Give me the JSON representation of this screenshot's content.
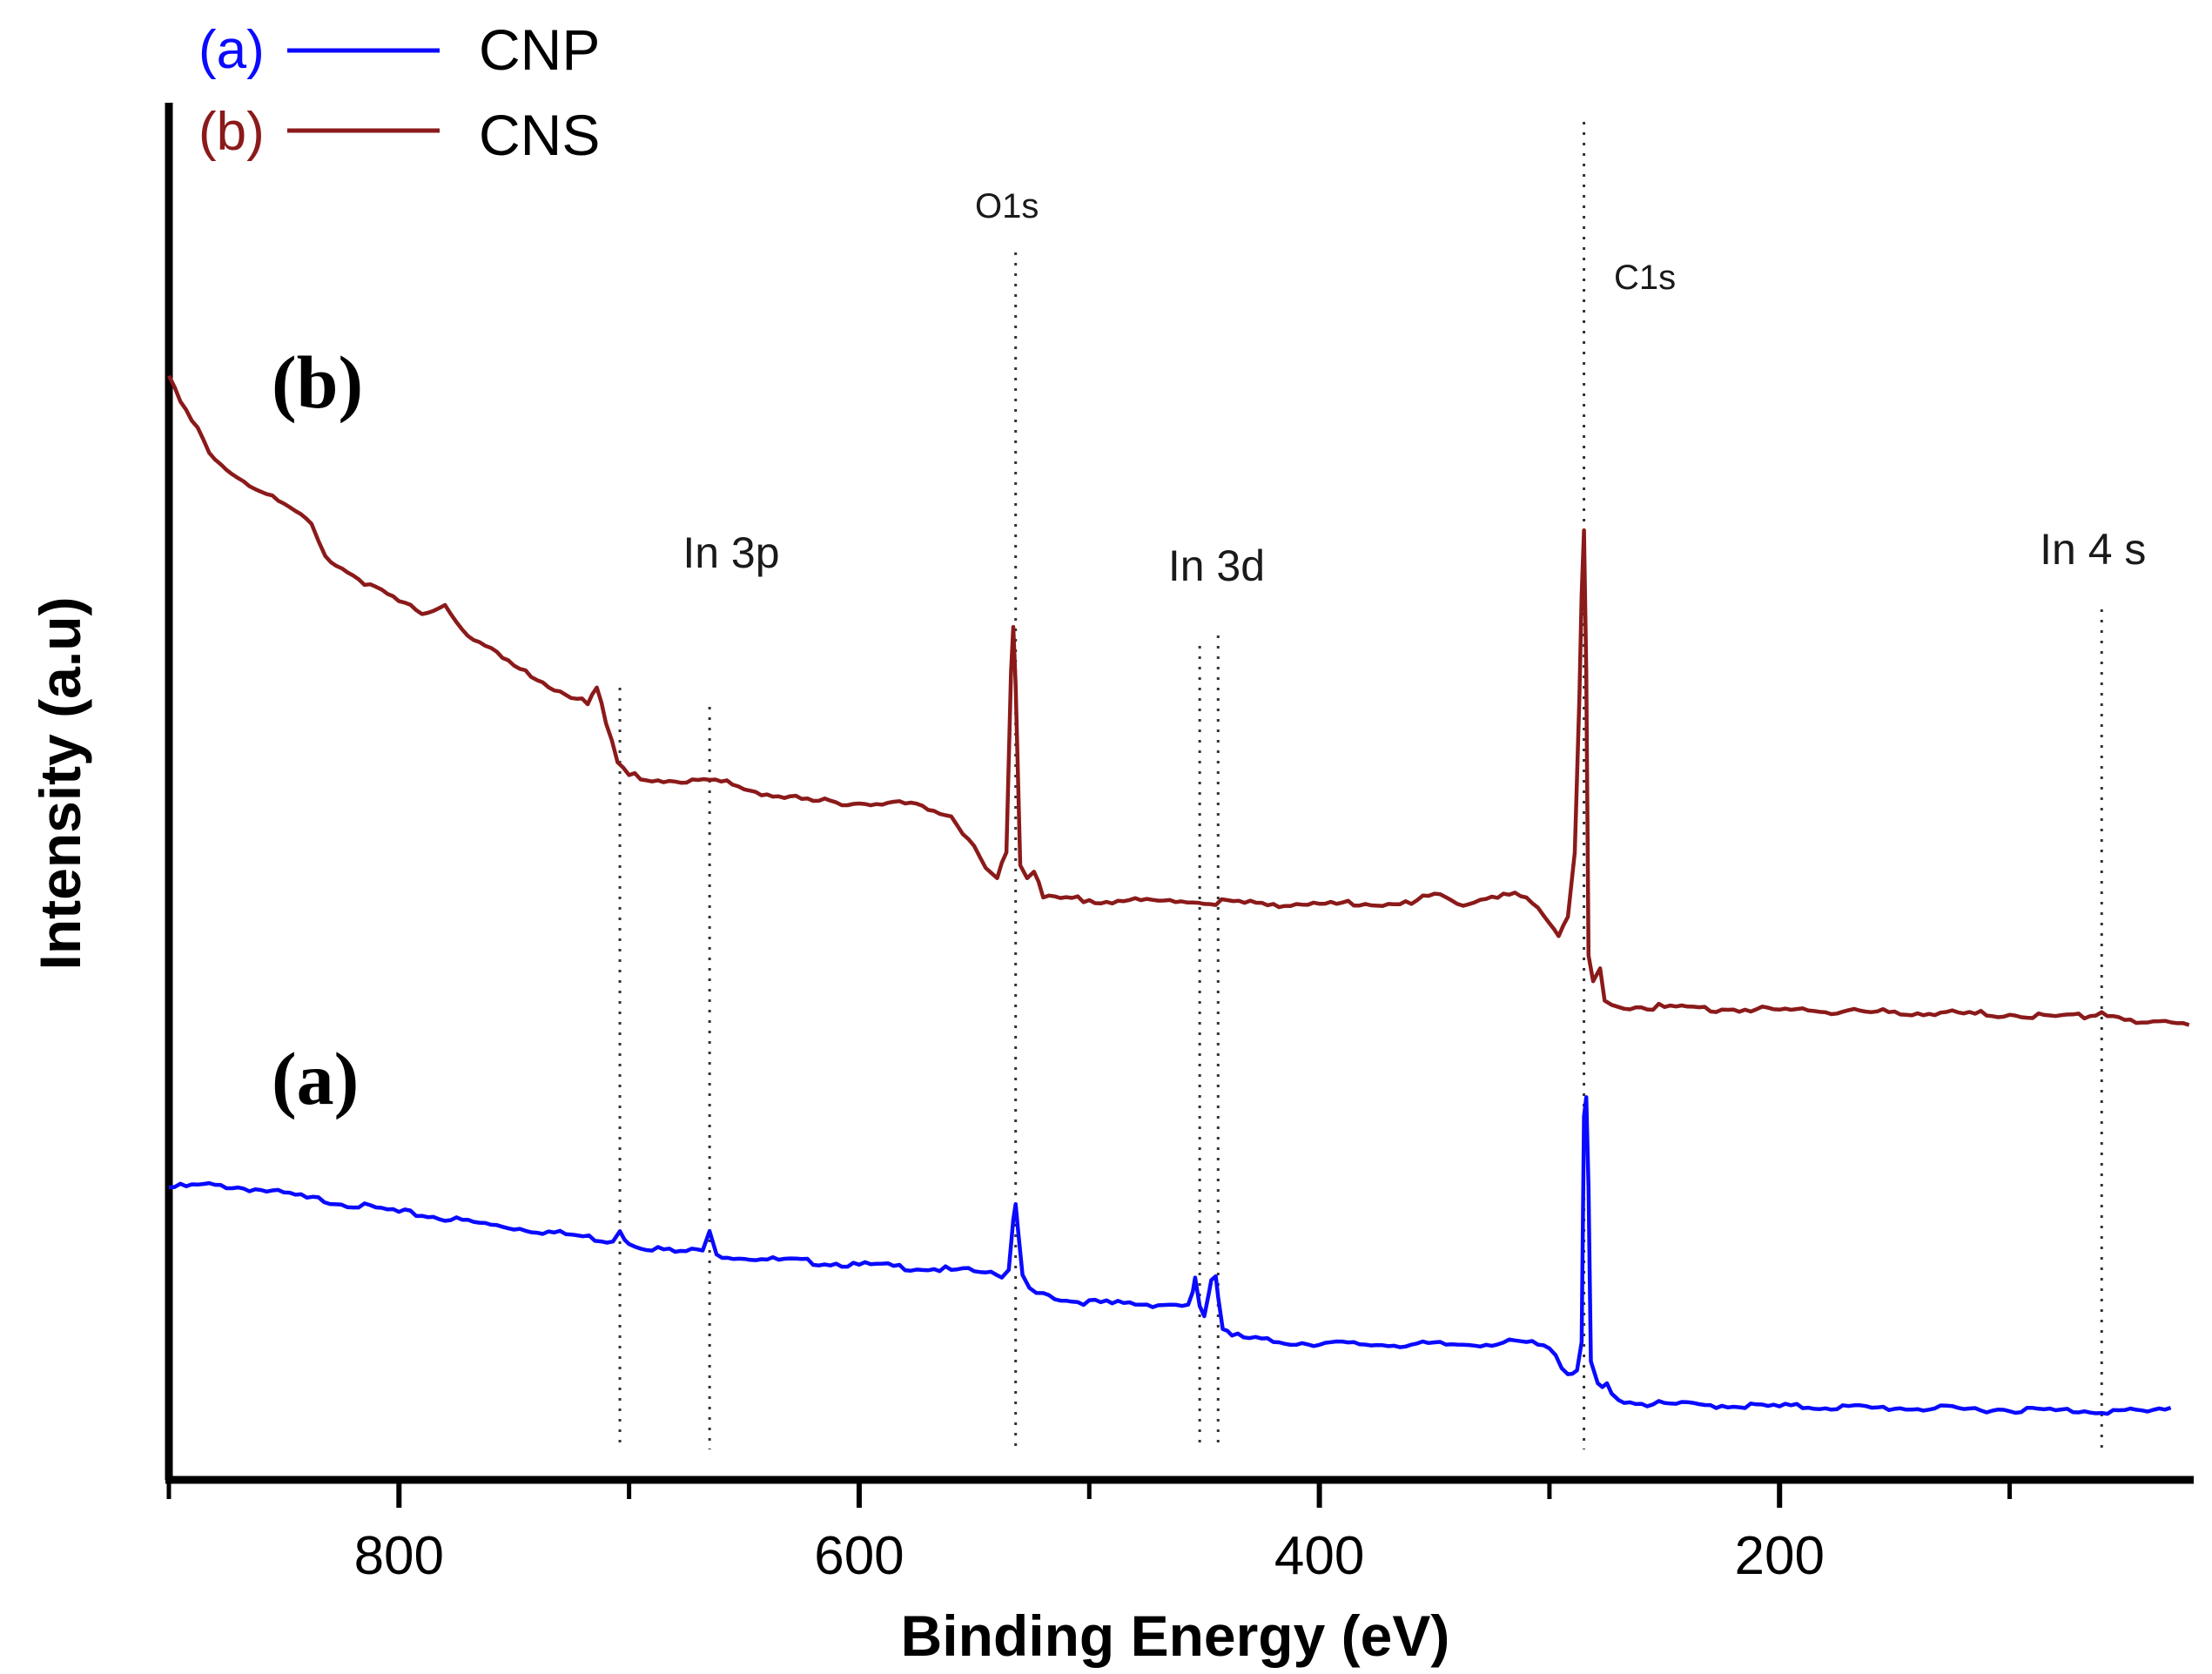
{
  "chart_data": {
    "type": "line",
    "title": "",
    "xlabel": "Binding Energy (eV)",
    "ylabel": "Intensity (a.u)",
    "xlim": [
      900,
      20
    ],
    "ylim": [
      0,
      100
    ],
    "x_reversed": true,
    "x_ticks": [
      800,
      600,
      400,
      200
    ],
    "x_minor_ticks": [
      700,
      500,
      300,
      100
    ],
    "grid": false,
    "legend_position": "top-left",
    "legend": [
      {
        "tag": "(a)",
        "name": "CNP",
        "color": "#0a0aff"
      },
      {
        "tag": "(b)",
        "name": "CNS",
        "color": "#8b1a1a"
      }
    ],
    "curve_labels": {
      "a": "(a)",
      "b": "(b)"
    },
    "peak_labels": [
      {
        "text": "O1s",
        "x": 532
      },
      {
        "text": "C1s",
        "x": 285
      },
      {
        "text": "In 3p",
        "x": 684
      },
      {
        "text": "In 3d",
        "x": 450
      },
      {
        "text": "In 4 s",
        "x": 60
      }
    ],
    "reference_lines_x": [
      704,
      665,
      532,
      452,
      444,
      285,
      60
    ],
    "series": [
      {
        "name": "CNP",
        "color": "#0a0aff",
        "points": [
          [
            900,
            20.0
          ],
          [
            880,
            20.2
          ],
          [
            860,
            19.8
          ],
          [
            840,
            19.2
          ],
          [
            800,
            18.1
          ],
          [
            760,
            17.1
          ],
          [
            720,
            16.2
          ],
          [
            707,
            15.8
          ],
          [
            704,
            16.6
          ],
          [
            700,
            15.6
          ],
          [
            680,
            15.0
          ],
          [
            668,
            15.1
          ],
          [
            665,
            16.6
          ],
          [
            662,
            14.8
          ],
          [
            640,
            14.4
          ],
          [
            600,
            14.0
          ],
          [
            560,
            13.6
          ],
          [
            545,
            13.4
          ],
          [
            538,
            13.0
          ],
          [
            535,
            13.6
          ],
          [
            533,
            17.5
          ],
          [
            532,
            18.7
          ],
          [
            531,
            16.8
          ],
          [
            529,
            13.2
          ],
          [
            526,
            12.2
          ],
          [
            520,
            11.8
          ],
          [
            510,
            11.2
          ],
          [
            490,
            11.0
          ],
          [
            465,
            10.9
          ],
          [
            457,
            10.9
          ],
          [
            455,
            11.9
          ],
          [
            454,
            13.0
          ],
          [
            452,
            10.8
          ],
          [
            450,
            10.0
          ],
          [
            448,
            11.8
          ],
          [
            447,
            12.8
          ],
          [
            445,
            13.1
          ],
          [
            444,
            11.5
          ],
          [
            442,
            9.0
          ],
          [
            438,
            8.5
          ],
          [
            420,
            8.0
          ],
          [
            380,
            7.8
          ],
          [
            340,
            7.8
          ],
          [
            310,
            8.0
          ],
          [
            300,
            7.5
          ],
          [
            292,
            5.5
          ],
          [
            288,
            5.8
          ],
          [
            286,
            8.0
          ],
          [
            285,
            25.5
          ],
          [
            284,
            27.0
          ],
          [
            283,
            20.0
          ],
          [
            282,
            6.5
          ],
          [
            279,
            4.8
          ],
          [
            277,
            4.5
          ],
          [
            275,
            4.8
          ],
          [
            273,
            4.0
          ],
          [
            270,
            3.5
          ],
          [
            260,
            3.2
          ],
          [
            230,
            3.1
          ],
          [
            200,
            3.0
          ],
          [
            160,
            2.9
          ],
          [
            120,
            2.8
          ],
          [
            80,
            2.7
          ],
          [
            40,
            2.6
          ],
          [
            30,
            2.9
          ]
        ]
      },
      {
        "name": "CNS",
        "color": "#8b1a1a",
        "points": [
          [
            900,
            83.0
          ],
          [
            895,
            81.0
          ],
          [
            880,
            76.5
          ],
          [
            860,
            74.0
          ],
          [
            845,
            72.5
          ],
          [
            838,
            71.5
          ],
          [
            832,
            69.0
          ],
          [
            820,
            67.5
          ],
          [
            800,
            65.5
          ],
          [
            790,
            64.5
          ],
          [
            780,
            65.2
          ],
          [
            770,
            62.8
          ],
          [
            750,
            60.5
          ],
          [
            730,
            58.5
          ],
          [
            718,
            57.5
          ],
          [
            714,
            58.8
          ],
          [
            710,
            56.0
          ],
          [
            705,
            53.0
          ],
          [
            700,
            52.0
          ],
          [
            680,
            51.5
          ],
          [
            660,
            51.5
          ],
          [
            640,
            50.5
          ],
          [
            620,
            50.0
          ],
          [
            600,
            49.8
          ],
          [
            580,
            49.8
          ],
          [
            570,
            49.3
          ],
          [
            560,
            48.8
          ],
          [
            550,
            46.5
          ],
          [
            545,
            44.8
          ],
          [
            540,
            44.0
          ],
          [
            536,
            46.0
          ],
          [
            534,
            60.0
          ],
          [
            533,
            63.5
          ],
          [
            532,
            59.0
          ],
          [
            530,
            45.0
          ],
          [
            527,
            44.0
          ],
          [
            524,
            44.5
          ],
          [
            520,
            42.5
          ],
          [
            500,
            42.3
          ],
          [
            460,
            42.2
          ],
          [
            420,
            42.0
          ],
          [
            380,
            42.0
          ],
          [
            360,
            42.0
          ],
          [
            350,
            42.8
          ],
          [
            340,
            42.0
          ],
          [
            320,
            42.8
          ],
          [
            310,
            42.5
          ],
          [
            300,
            40.5
          ],
          [
            296,
            39.5
          ],
          [
            292,
            41.0
          ],
          [
            289,
            46.0
          ],
          [
            287,
            58.0
          ],
          [
            286,
            66.0
          ],
          [
            285,
            71.0
          ],
          [
            284,
            60.0
          ],
          [
            283,
            38.0
          ],
          [
            281,
            36.0
          ],
          [
            278,
            37.0
          ],
          [
            276,
            34.5
          ],
          [
            270,
            34.0
          ],
          [
            250,
            34.0
          ],
          [
            220,
            33.8
          ],
          [
            200,
            33.8
          ],
          [
            160,
            33.6
          ],
          [
            120,
            33.5
          ],
          [
            100,
            33.4
          ],
          [
            80,
            33.3
          ],
          [
            65,
            33.3
          ],
          [
            60,
            33.6
          ],
          [
            55,
            33.3
          ],
          [
            40,
            32.8
          ],
          [
            22,
            32.6
          ]
        ]
      }
    ]
  }
}
